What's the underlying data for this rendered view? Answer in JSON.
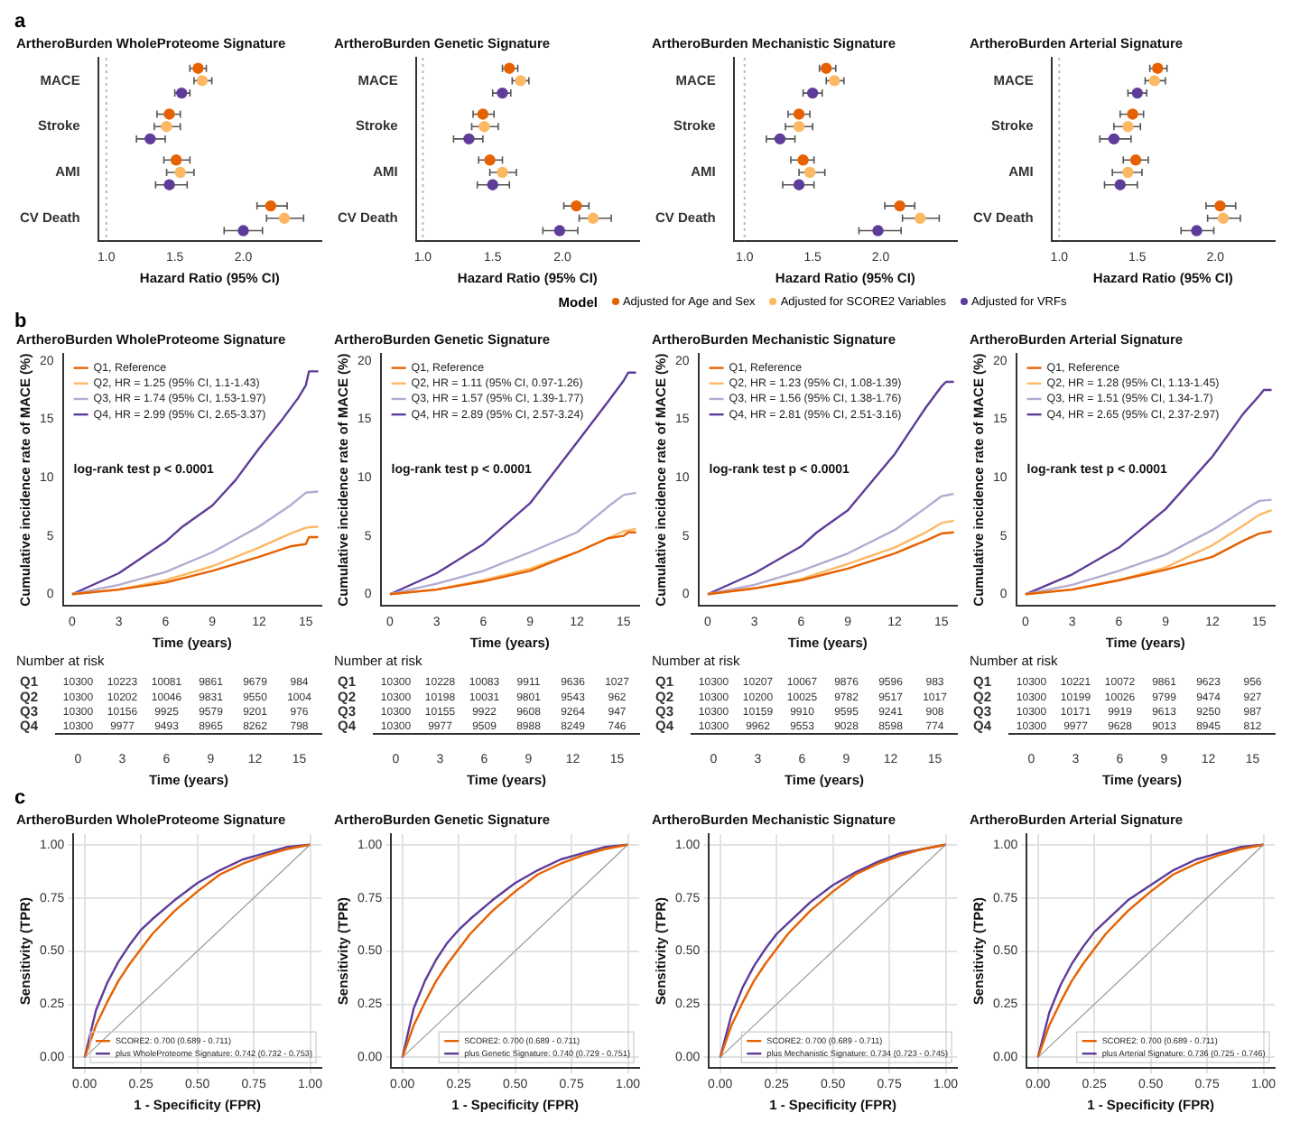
{
  "chart_data": [
    {
      "type": "scatter",
      "orientation": "horizontal",
      "title": "ArtheroBurden WholeProteome Signature",
      "xlabel": "Hazard Ratio (95% CI)",
      "legend_title": "Model",
      "legend": "bottom",
      "marker": "circle",
      "grid": false,
      "annotations": [
        "a"
      ],
      "categories": [
        "MACE",
        "Stroke",
        "AMI",
        "CV Death"
      ],
      "xlim": [
        0.94,
        2.57
      ],
      "xticks": [
        {
          "value": 1,
          "label": "1.0"
        },
        {
          "value": 1.5,
          "label": "1.5"
        },
        {
          "value": 2,
          "label": "2.0"
        }
      ],
      "ref_lines": [
        {
          "axis": "x",
          "value": 1,
          "color": "#bbbbbb",
          "line_style": "dotted"
        }
      ],
      "series": [
        {
          "name": "Adjusted for Age and Sex",
          "color": "#e66101",
          "values": [
            1.67,
            1.46,
            1.51,
            2.2
          ],
          "errors": [
            [
              1.61,
              1.73
            ],
            [
              1.37,
              1.54
            ],
            [
              1.42,
              1.61
            ],
            [
              2.1,
              2.32
            ]
          ]
        },
        {
          "name": "Adjusted for SCORE2 Variables",
          "color": "#fdb863",
          "values": [
            1.7,
            1.44,
            1.54,
            2.3
          ],
          "errors": [
            [
              1.64,
              1.77
            ],
            [
              1.35,
              1.54
            ],
            [
              1.44,
              1.64
            ],
            [
              2.17,
              2.44
            ]
          ]
        },
        {
          "name": "Adjusted for VRFs",
          "color": "#5e3c99",
          "values": [
            1.55,
            1.32,
            1.46,
            2.0
          ],
          "errors": [
            [
              1.5,
              1.61
            ],
            [
              1.22,
              1.43
            ],
            [
              1.36,
              1.59
            ],
            [
              1.86,
              2.14
            ]
          ]
        }
      ]
    },
    {
      "type": "scatter",
      "orientation": "horizontal",
      "title": "ArtheroBurden Genetic Signature",
      "xlabel": "Hazard Ratio (95% CI)",
      "marker": "circle",
      "grid": false,
      "categories": [
        "MACE",
        "Stroke",
        "AMI",
        "CV Death"
      ],
      "xlim": [
        0.95,
        2.55
      ],
      "xticks": [
        {
          "value": 1,
          "label": "1.0"
        },
        {
          "value": 1.5,
          "label": "1.5"
        },
        {
          "value": 2,
          "label": "2.0"
        }
      ],
      "ref_lines": [
        {
          "axis": "x",
          "value": 1,
          "color": "#bbbbbb",
          "line_style": "dotted"
        }
      ],
      "series": [
        {
          "color": "#e66101",
          "values": [
            1.62,
            1.43,
            1.48,
            2.1
          ],
          "errors": [
            [
              1.57,
              1.68
            ],
            [
              1.36,
              1.51
            ],
            [
              1.4,
              1.57
            ],
            [
              2.01,
              2.19
            ]
          ]
        },
        {
          "color": "#fdb863",
          "values": [
            1.7,
            1.44,
            1.57,
            2.22
          ],
          "errors": [
            [
              1.64,
              1.76
            ],
            [
              1.35,
              1.54
            ],
            [
              1.48,
              1.67
            ],
            [
              2.12,
              2.35
            ]
          ]
        },
        {
          "color": "#5e3c99",
          "values": [
            1.57,
            1.33,
            1.5,
            1.98
          ],
          "errors": [
            [
              1.5,
              1.63
            ],
            [
              1.22,
              1.43
            ],
            [
              1.39,
              1.62
            ],
            [
              1.86,
              2.11
            ]
          ]
        }
      ]
    },
    {
      "type": "scatter",
      "orientation": "horizontal",
      "title": "ArtheroBurden Mechanistic Signature",
      "xlabel": "Hazard Ratio (95% CI)",
      "marker": "circle",
      "grid": false,
      "categories": [
        "MACE",
        "Stroke",
        "AMI",
        "CV Death"
      ],
      "xlim": [
        0.92,
        2.56
      ],
      "xticks": [
        {
          "value": 1,
          "label": "1.0"
        },
        {
          "value": 1.5,
          "label": "1.5"
        },
        {
          "value": 2,
          "label": "2.0"
        }
      ],
      "ref_lines": [
        {
          "axis": "x",
          "value": 1,
          "color": "#bbbbbb",
          "line_style": "dotted"
        }
      ],
      "series": [
        {
          "color": "#e66101",
          "values": [
            1.6,
            1.4,
            1.43,
            2.14
          ],
          "errors": [
            [
              1.55,
              1.67
            ],
            [
              1.32,
              1.48
            ],
            [
              1.34,
              1.51
            ],
            [
              2.03,
              2.25
            ]
          ]
        },
        {
          "color": "#fdb863",
          "values": [
            1.66,
            1.4,
            1.48,
            2.29
          ],
          "errors": [
            [
              1.6,
              1.73
            ],
            [
              1.3,
              1.5
            ],
            [
              1.4,
              1.59
            ],
            [
              2.16,
              2.43
            ]
          ]
        },
        {
          "color": "#5e3c99",
          "values": [
            1.5,
            1.26,
            1.4,
            1.98
          ],
          "errors": [
            [
              1.43,
              1.57
            ],
            [
              1.16,
              1.37
            ],
            [
              1.28,
              1.51
            ],
            [
              1.84,
              2.15
            ]
          ]
        }
      ]
    },
    {
      "type": "scatter",
      "orientation": "horizontal",
      "title": "ArtheroBurden Arterial Signature",
      "xlabel": "Hazard Ratio (95% CI)",
      "marker": "circle",
      "grid": false,
      "categories": [
        "MACE",
        "Stroke",
        "AMI",
        "CV Death"
      ],
      "xlim": [
        0.95,
        2.38
      ],
      "xticks": [
        {
          "value": 1,
          "label": "1.0"
        },
        {
          "value": 1.5,
          "label": "1.5"
        },
        {
          "value": 2,
          "label": "2.0"
        }
      ],
      "ref_lines": [
        {
          "axis": "x",
          "value": 1,
          "color": "#bbbbbb",
          "line_style": "dotted"
        }
      ],
      "series": [
        {
          "color": "#e66101",
          "values": [
            1.63,
            1.47,
            1.49,
            2.03
          ],
          "errors": [
            [
              1.58,
              1.69
            ],
            [
              1.39,
              1.54
            ],
            [
              1.41,
              1.57
            ],
            [
              1.94,
              2.13
            ]
          ]
        },
        {
          "color": "#fdb863",
          "values": [
            1.61,
            1.44,
            1.44,
            2.05
          ],
          "errors": [
            [
              1.55,
              1.68
            ],
            [
              1.35,
              1.52
            ],
            [
              1.34,
              1.53
            ],
            [
              1.95,
              2.16
            ]
          ]
        },
        {
          "color": "#5e3c99",
          "values": [
            1.5,
            1.35,
            1.39,
            1.88
          ],
          "errors": [
            [
              1.44,
              1.56
            ],
            [
              1.26,
              1.46
            ],
            [
              1.29,
              1.5
            ],
            [
              1.78,
              1.99
            ]
          ]
        }
      ]
    },
    {
      "type": "line",
      "title": "ArtheroBurden WholeProteome Signature",
      "xlabel": "Time (years)",
      "ylabel": "Cumulative incidence rate of MACE (%)",
      "legend": "top left",
      "marker": "none",
      "grid": false,
      "annotations": [
        "b",
        "log-rank test p < 0.0001"
      ],
      "xlim": [
        -0.6,
        16
      ],
      "xticks": [
        0,
        3,
        6,
        9,
        12,
        15
      ],
      "ylim": [
        -1,
        20.6
      ],
      "yticks": [
        0,
        5,
        10,
        15,
        20
      ],
      "series": [
        {
          "name": "Q1, Reference",
          "color": "#e66101",
          "x": [
            0,
            3,
            6,
            9,
            12,
            14,
            15,
            15.2,
            15.8
          ],
          "values": [
            0,
            0.4,
            1.0,
            2.0,
            3.2,
            4.1,
            4.3,
            4.9,
            4.9
          ]
        },
        {
          "name": "Q2, HR = 1.25 (95% CI, 1.1-1.43)",
          "color": "#fdb863",
          "x": [
            0,
            3,
            6,
            9,
            12,
            14,
            15,
            15.8
          ],
          "values": [
            0,
            0.4,
            1.2,
            2.4,
            4.0,
            5.2,
            5.7,
            5.8
          ]
        },
        {
          "name": "Q3, HR = 1.74 (95% CI, 1.53-1.97)",
          "color": "#b2abd2",
          "x": [
            0,
            3,
            6,
            9,
            12,
            14,
            15,
            15.8
          ],
          "values": [
            0,
            0.8,
            1.9,
            3.6,
            5.8,
            7.6,
            8.7,
            8.8
          ]
        },
        {
          "name": "Q4, HR = 2.99 (95% CI, 2.65-3.37)",
          "color": "#5e3c99",
          "x": [
            0,
            3,
            6,
            7,
            9,
            10.5,
            12,
            13.5,
            14.5,
            15,
            15.2,
            15.8
          ],
          "values": [
            0,
            1.8,
            4.5,
            5.7,
            7.6,
            9.8,
            12.5,
            15,
            16.8,
            17.9,
            19.1,
            19.1
          ]
        }
      ]
    },
    {
      "type": "line",
      "title": "ArtheroBurden Genetic Signature",
      "xlabel": "Time (years)",
      "ylabel": "Cumulative incidence rate of MACE (%)",
      "legend": "top left",
      "marker": "none",
      "grid": false,
      "annotations": [
        "log-rank test p < 0.0001"
      ],
      "xlim": [
        -0.6,
        16
      ],
      "xticks": [
        0,
        3,
        6,
        9,
        12,
        15
      ],
      "ylim": [
        -1,
        20.6
      ],
      "yticks": [
        0,
        5,
        10,
        15,
        20
      ],
      "series": [
        {
          "name": "Q1, Reference",
          "color": "#e66101",
          "x": [
            0,
            3,
            6,
            9,
            12,
            14,
            15,
            15.3,
            15.8
          ],
          "values": [
            0,
            0.4,
            1.1,
            2.0,
            3.6,
            4.8,
            5.0,
            5.3,
            5.3
          ]
        },
        {
          "name": "Q2, HR = 1.11 (95% CI, 0.97-1.26)",
          "color": "#fdb863",
          "x": [
            0,
            3,
            6,
            9,
            12,
            14,
            15,
            15.8
          ],
          "values": [
            0,
            0.4,
            1.2,
            2.2,
            3.6,
            4.8,
            5.4,
            5.6
          ]
        },
        {
          "name": "Q3, HR = 1.57 (95% CI, 1.39-1.77)",
          "color": "#b2abd2",
          "x": [
            0,
            3,
            6,
            9,
            12,
            14,
            15,
            15.8
          ],
          "values": [
            0,
            0.9,
            2.0,
            3.6,
            5.3,
            7.5,
            8.5,
            8.7
          ]
        },
        {
          "name": "Q4, HR = 2.89 (95% CI, 2.57-3.24)",
          "color": "#5e3c99",
          "x": [
            0,
            3,
            6,
            9,
            12,
            14,
            15,
            15.3,
            15.8
          ],
          "values": [
            0,
            1.8,
            4.3,
            7.8,
            13,
            16.5,
            18.3,
            19,
            19
          ]
        }
      ]
    },
    {
      "type": "line",
      "title": "ArtheroBurden Mechanistic Signature",
      "xlabel": "Time (years)",
      "ylabel": "Cumulative incidence rate of MACE (%)",
      "legend": "top left",
      "marker": "none",
      "grid": false,
      "annotations": [
        "log-rank test p < 0.0001"
      ],
      "xlim": [
        -0.6,
        16
      ],
      "xticks": [
        0,
        3,
        6,
        9,
        12,
        15
      ],
      "ylim": [
        -1,
        20.6
      ],
      "yticks": [
        0,
        5,
        10,
        15,
        20
      ],
      "series": [
        {
          "name": "Q1, Reference",
          "color": "#e66101",
          "x": [
            0,
            3,
            6,
            9,
            12,
            14,
            15,
            15.8
          ],
          "values": [
            0,
            0.5,
            1.2,
            2.2,
            3.5,
            4.6,
            5.2,
            5.3
          ]
        },
        {
          "name": "Q2, HR = 1.23 (95% CI, 1.08-1.39)",
          "color": "#fdb863",
          "x": [
            0,
            3,
            6,
            9,
            12,
            14,
            15,
            15.8
          ],
          "values": [
            0,
            0.5,
            1.3,
            2.6,
            4.0,
            5.3,
            6.1,
            6.3
          ]
        },
        {
          "name": "Q3, HR = 1.56 (95% CI, 1.38-1.76)",
          "color": "#b2abd2",
          "x": [
            0,
            3,
            6,
            9,
            12,
            14,
            15,
            15.8
          ],
          "values": [
            0,
            0.8,
            2.0,
            3.5,
            5.5,
            7.4,
            8.4,
            8.6
          ]
        },
        {
          "name": "Q4, HR = 2.81 (95% CI, 2.51-3.16)",
          "color": "#5e3c99",
          "x": [
            0,
            3,
            6,
            7,
            9,
            12,
            14,
            15,
            15.3,
            15.8
          ],
          "values": [
            0,
            1.8,
            4.1,
            5.3,
            7.2,
            12.0,
            16,
            17.8,
            18.2,
            18.2
          ]
        }
      ]
    },
    {
      "type": "line",
      "title": "ArtheroBurden Arterial Signature",
      "xlabel": "Time (years)",
      "ylabel": "Cumulative incidence rate of MACE (%)",
      "legend": "top left",
      "marker": "none",
      "grid": false,
      "annotations": [
        "log-rank test p < 0.0001"
      ],
      "xlim": [
        -0.6,
        16
      ],
      "xticks": [
        0,
        3,
        6,
        9,
        12,
        15
      ],
      "ylim": [
        -1,
        20.6
      ],
      "yticks": [
        0,
        5,
        10,
        15,
        20
      ],
      "series": [
        {
          "name": "Q1, Reference",
          "color": "#e66101",
          "x": [
            0,
            3,
            6,
            9,
            12,
            14,
            15,
            15.8
          ],
          "values": [
            0,
            0.4,
            1.2,
            2.1,
            3.2,
            4.6,
            5.2,
            5.4
          ]
        },
        {
          "name": "Q2, HR = 1.28 (95% CI, 1.13-1.45)",
          "color": "#fdb863",
          "x": [
            0,
            3,
            6,
            9,
            12,
            14,
            15,
            15.8
          ],
          "values": [
            0,
            0.4,
            1.2,
            2.3,
            4.2,
            5.9,
            6.8,
            7.2
          ]
        },
        {
          "name": "Q3, HR = 1.51 (95% CI, 1.34-1.7)",
          "color": "#b2abd2",
          "x": [
            0,
            3,
            6,
            9,
            12,
            14,
            15,
            15.8
          ],
          "values": [
            0,
            0.8,
            2.0,
            3.4,
            5.5,
            7.2,
            8.0,
            8.1
          ]
        },
        {
          "name": "Q4, HR = 2.65 (95% CI, 2.37-2.97)",
          "color": "#5e3c99",
          "x": [
            0,
            3,
            6,
            9,
            12,
            14,
            15,
            15.3,
            15.8
          ],
          "values": [
            0,
            1.7,
            4.0,
            7.3,
            11.8,
            15.5,
            17,
            17.5,
            17.5
          ]
        }
      ]
    },
    {
      "type": "heatmap",
      "title": "Number at risk",
      "xlabel": "Time (years)",
      "data_labels": true,
      "categories": [
        "0",
        "3",
        "6",
        "9",
        "12",
        "15"
      ],
      "y_categories": [
        "Q1",
        "Q2",
        "Q3",
        "Q4"
      ],
      "cells": [
        [
          10300,
          10223,
          10081,
          9861,
          9679,
          984
        ],
        [
          10300,
          10202,
          10046,
          9831,
          9550,
          1004
        ],
        [
          10300,
          10156,
          9925,
          9579,
          9201,
          976
        ],
        [
          10300,
          9977,
          9493,
          8965,
          8262,
          798
        ]
      ]
    },
    {
      "type": "heatmap",
      "title": "Number at risk",
      "xlabel": "Time (years)",
      "data_labels": true,
      "categories": [
        "0",
        "3",
        "6",
        "9",
        "12",
        "15"
      ],
      "y_categories": [
        "Q1",
        "Q2",
        "Q3",
        "Q4"
      ],
      "cells": [
        [
          10300,
          10228,
          10083,
          9911,
          9636,
          1027
        ],
        [
          10300,
          10198,
          10031,
          9801,
          9543,
          962
        ],
        [
          10300,
          10155,
          9922,
          9608,
          9264,
          947
        ],
        [
          10300,
          9977,
          9509,
          8988,
          8249,
          746
        ]
      ]
    },
    {
      "type": "heatmap",
      "title": "Number at risk",
      "xlabel": "Time (years)",
      "data_labels": true,
      "categories": [
        "0",
        "3",
        "6",
        "9",
        "12",
        "15"
      ],
      "y_categories": [
        "Q1",
        "Q2",
        "Q3",
        "Q4"
      ],
      "cells": [
        [
          10300,
          10207,
          10067,
          9876,
          9596,
          983
        ],
        [
          10300,
          10200,
          10025,
          9782,
          9517,
          1017
        ],
        [
          10300,
          10159,
          9910,
          9595,
          9241,
          908
        ],
        [
          10300,
          9962,
          9553,
          9028,
          8598,
          774
        ]
      ]
    },
    {
      "type": "heatmap",
      "title": "Number at risk",
      "xlabel": "Time (years)",
      "data_labels": true,
      "categories": [
        "0",
        "3",
        "6",
        "9",
        "12",
        "15"
      ],
      "y_categories": [
        "Q1",
        "Q2",
        "Q3",
        "Q4"
      ],
      "cells": [
        [
          10300,
          10221,
          10072,
          9861,
          9623,
          956
        ],
        [
          10300,
          10199,
          10026,
          9799,
          9474,
          927
        ],
        [
          10300,
          10171,
          9919,
          9613,
          9250,
          987
        ],
        [
          10300,
          9977,
          9628,
          9013,
          8945,
          812
        ]
      ]
    },
    {
      "type": "line",
      "title": "ArtheroBurden WholeProteome Signature",
      "xlabel": "1 - Specificity (FPR)",
      "ylabel": "Sensitivity (TPR)",
      "legend": "bottom right",
      "marker": "none",
      "grid": true,
      "annotations": [
        "c"
      ],
      "xlim": [
        -0.05,
        1.05
      ],
      "ylim": [
        -0.05,
        1.05
      ],
      "xticks": [
        {
          "value": 0,
          "label": "0.00"
        },
        {
          "value": 0.25,
          "label": "0.25"
        },
        {
          "value": 0.5,
          "label": "0.50"
        },
        {
          "value": 0.75,
          "label": "0.75"
        },
        {
          "value": 1,
          "label": "1.00"
        }
      ],
      "yticks": [
        {
          "value": 0,
          "label": "0.00"
        },
        {
          "value": 0.25,
          "label": "0.25"
        },
        {
          "value": 0.5,
          "label": "0.50"
        },
        {
          "value": 0.75,
          "label": "0.75"
        },
        {
          "value": 1,
          "label": "1.00"
        }
      ],
      "series": [
        {
          "color": "#999999",
          "x": [
            0,
            1
          ],
          "values": [
            0,
            1
          ]
        },
        {
          "name": "SCORE2: 0.700 (0.689 - 0.711)",
          "color": "#e66101",
          "x": [
            0,
            0.05,
            0.1,
            0.15,
            0.2,
            0.25,
            0.3,
            0.4,
            0.5,
            0.6,
            0.7,
            0.8,
            0.9,
            1
          ],
          "values": [
            0,
            0.15,
            0.26,
            0.36,
            0.44,
            0.51,
            0.58,
            0.69,
            0.78,
            0.86,
            0.91,
            0.95,
            0.98,
            1
          ]
        },
        {
          "name": "plus WholeProteome Signature: 0.742 (0.732 - 0.753)",
          "color": "#5e3c99",
          "x": [
            0,
            0.05,
            0.1,
            0.15,
            0.2,
            0.25,
            0.3,
            0.4,
            0.5,
            0.6,
            0.7,
            0.8,
            0.9,
            1
          ],
          "values": [
            0,
            0.22,
            0.35,
            0.45,
            0.53,
            0.6,
            0.65,
            0.74,
            0.82,
            0.88,
            0.93,
            0.96,
            0.99,
            1
          ]
        }
      ]
    },
    {
      "type": "line",
      "title": "ArtheroBurden Genetic Signature",
      "xlabel": "1 - Specificity (FPR)",
      "ylabel": "Sensitivity (TPR)",
      "legend": "bottom right",
      "marker": "none",
      "grid": true,
      "xlim": [
        -0.05,
        1.05
      ],
      "ylim": [
        -0.05,
        1.05
      ],
      "xticks": [
        {
          "value": 0,
          "label": "0.00"
        },
        {
          "value": 0.25,
          "label": "0.25"
        },
        {
          "value": 0.5,
          "label": "0.50"
        },
        {
          "value": 0.75,
          "label": "0.75"
        },
        {
          "value": 1,
          "label": "1.00"
        }
      ],
      "yticks": [
        {
          "value": 0,
          "label": "0.00"
        },
        {
          "value": 0.25,
          "label": "0.25"
        },
        {
          "value": 0.5,
          "label": "0.50"
        },
        {
          "value": 0.75,
          "label": "0.75"
        },
        {
          "value": 1,
          "label": "1.00"
        }
      ],
      "series": [
        {
          "color": "#999999",
          "x": [
            0,
            1
          ],
          "values": [
            0,
            1
          ]
        },
        {
          "name": "SCORE2: 0.700 (0.689 - 0.711)",
          "color": "#e66101",
          "x": [
            0,
            0.05,
            0.1,
            0.15,
            0.2,
            0.25,
            0.3,
            0.4,
            0.5,
            0.6,
            0.7,
            0.8,
            0.9,
            1
          ],
          "values": [
            0,
            0.15,
            0.26,
            0.36,
            0.44,
            0.51,
            0.58,
            0.69,
            0.78,
            0.86,
            0.91,
            0.95,
            0.98,
            1
          ]
        },
        {
          "name": "plus Genetic Signature: 0.740 (0.729 - 0.751)",
          "color": "#5e3c99",
          "x": [
            0,
            0.05,
            0.1,
            0.15,
            0.2,
            0.25,
            0.3,
            0.4,
            0.5,
            0.6,
            0.7,
            0.8,
            0.9,
            1
          ],
          "values": [
            0,
            0.23,
            0.36,
            0.46,
            0.54,
            0.6,
            0.65,
            0.74,
            0.82,
            0.88,
            0.93,
            0.96,
            0.99,
            1
          ]
        }
      ]
    },
    {
      "type": "line",
      "title": "ArtheroBurden Mechanistic Signature",
      "xlabel": "1 - Specificity (FPR)",
      "ylabel": "Sensitivity (TPR)",
      "legend": "bottom right",
      "marker": "none",
      "grid": true,
      "xlim": [
        -0.05,
        1.05
      ],
      "ylim": [
        -0.05,
        1.05
      ],
      "xticks": [
        {
          "value": 0,
          "label": "0.00"
        },
        {
          "value": 0.25,
          "label": "0.25"
        },
        {
          "value": 0.5,
          "label": "0.50"
        },
        {
          "value": 0.75,
          "label": "0.75"
        },
        {
          "value": 1,
          "label": "1.00"
        }
      ],
      "yticks": [
        {
          "value": 0,
          "label": "0.00"
        },
        {
          "value": 0.25,
          "label": "0.25"
        },
        {
          "value": 0.5,
          "label": "0.50"
        },
        {
          "value": 0.75,
          "label": "0.75"
        },
        {
          "value": 1,
          "label": "1.00"
        }
      ],
      "series": [
        {
          "color": "#999999",
          "x": [
            0,
            1
          ],
          "values": [
            0,
            1
          ]
        },
        {
          "name": "SCORE2: 0.700 (0.689 - 0.711)",
          "color": "#e66101",
          "x": [
            0,
            0.05,
            0.1,
            0.15,
            0.2,
            0.25,
            0.3,
            0.4,
            0.5,
            0.6,
            0.7,
            0.8,
            0.9,
            1
          ],
          "values": [
            0,
            0.15,
            0.26,
            0.36,
            0.44,
            0.51,
            0.58,
            0.69,
            0.78,
            0.86,
            0.91,
            0.95,
            0.98,
            1
          ]
        },
        {
          "name": "plus Mechanistic Signature: 0.734 (0.723 - 0.745)",
          "color": "#5e3c99",
          "x": [
            0,
            0.05,
            0.1,
            0.15,
            0.2,
            0.25,
            0.3,
            0.4,
            0.5,
            0.6,
            0.7,
            0.8,
            0.9,
            1
          ],
          "values": [
            0,
            0.2,
            0.33,
            0.43,
            0.51,
            0.58,
            0.63,
            0.73,
            0.81,
            0.87,
            0.92,
            0.96,
            0.98,
            1
          ]
        }
      ]
    },
    {
      "type": "line",
      "title": "ArtheroBurden Arterial Signature",
      "xlabel": "1 - Specificity (FPR)",
      "ylabel": "Sensitivity (TPR)",
      "legend": "bottom right",
      "marker": "none",
      "grid": true,
      "xlim": [
        -0.05,
        1.05
      ],
      "ylim": [
        -0.05,
        1.05
      ],
      "xticks": [
        {
          "value": 0,
          "label": "0.00"
        },
        {
          "value": 0.25,
          "label": "0.25"
        },
        {
          "value": 0.5,
          "label": "0.50"
        },
        {
          "value": 0.75,
          "label": "0.75"
        },
        {
          "value": 1,
          "label": "1.00"
        }
      ],
      "yticks": [
        {
          "value": 0,
          "label": "0.00"
        },
        {
          "value": 0.25,
          "label": "0.25"
        },
        {
          "value": 0.5,
          "label": "0.50"
        },
        {
          "value": 0.75,
          "label": "0.75"
        },
        {
          "value": 1,
          "label": "1.00"
        }
      ],
      "series": [
        {
          "color": "#999999",
          "x": [
            0,
            1
          ],
          "values": [
            0,
            1
          ]
        },
        {
          "name": "SCORE2: 0.700 (0.689 - 0.711)",
          "color": "#e66101",
          "x": [
            0,
            0.05,
            0.1,
            0.15,
            0.2,
            0.25,
            0.3,
            0.4,
            0.5,
            0.6,
            0.7,
            0.8,
            0.9,
            1
          ],
          "values": [
            0,
            0.15,
            0.26,
            0.36,
            0.44,
            0.51,
            0.58,
            0.69,
            0.78,
            0.86,
            0.91,
            0.95,
            0.98,
            1
          ]
        },
        {
          "name": "plus Arterial Signature: 0.736 (0.725 - 0.746)",
          "color": "#5e3c99",
          "x": [
            0,
            0.05,
            0.1,
            0.15,
            0.2,
            0.25,
            0.3,
            0.4,
            0.5,
            0.6,
            0.7,
            0.8,
            0.9,
            1
          ],
          "values": [
            0,
            0.21,
            0.34,
            0.44,
            0.52,
            0.59,
            0.64,
            0.74,
            0.81,
            0.88,
            0.93,
            0.96,
            0.99,
            1
          ]
        }
      ]
    }
  ]
}
